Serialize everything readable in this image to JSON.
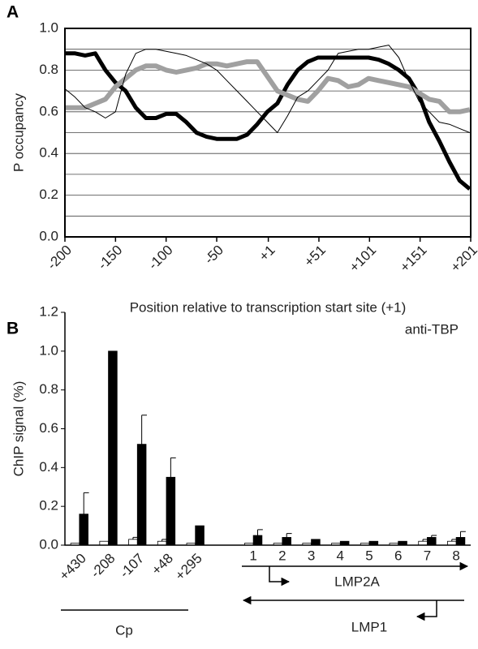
{
  "chart_data": [
    {
      "type": "line",
      "panel": "A",
      "y_label": "P occupancy",
      "x_label": "Position relative to transcription start site (+1)",
      "x": [
        -200,
        -190,
        -180,
        -170,
        -160,
        -150,
        -140,
        -130,
        -120,
        -110,
        -100,
        -90,
        -80,
        -70,
        -60,
        -50,
        -40,
        -30,
        -20,
        -10,
        0,
        10,
        20,
        30,
        40,
        50,
        60,
        70,
        80,
        90,
        100,
        110,
        120,
        130,
        140,
        150,
        160,
        170,
        180,
        190,
        200
      ],
      "series": [
        {
          "color": "#000000",
          "width": 5,
          "values": [
            0.88,
            0.88,
            0.87,
            0.88,
            0.8,
            0.74,
            0.7,
            0.62,
            0.57,
            0.57,
            0.59,
            0.59,
            0.55,
            0.5,
            0.48,
            0.47,
            0.47,
            0.47,
            0.49,
            0.54,
            0.6,
            0.64,
            0.73,
            0.8,
            0.84,
            0.86,
            0.86,
            0.86,
            0.86,
            0.86,
            0.86,
            0.85,
            0.83,
            0.8,
            0.76,
            0.68,
            0.55,
            0.46,
            0.36,
            0.27,
            0.23
          ]
        },
        {
          "color": "#a0a0a0",
          "width": 6,
          "values": [
            0.62,
            0.62,
            0.62,
            0.64,
            0.66,
            0.72,
            0.76,
            0.8,
            0.82,
            0.82,
            0.8,
            0.79,
            0.8,
            0.81,
            0.83,
            0.83,
            0.82,
            0.83,
            0.84,
            0.84,
            0.77,
            0.7,
            0.68,
            0.66,
            0.65,
            0.7,
            0.76,
            0.75,
            0.72,
            0.73,
            0.76,
            0.75,
            0.74,
            0.73,
            0.72,
            0.69,
            0.66,
            0.65,
            0.6,
            0.6,
            0.61
          ]
        },
        {
          "color": "#000000",
          "width": 1,
          "values": [
            0.71,
            0.67,
            0.62,
            0.6,
            0.57,
            0.6,
            0.78,
            0.88,
            0.9,
            0.9,
            0.89,
            0.88,
            0.87,
            0.85,
            0.83,
            0.8,
            0.75,
            0.7,
            0.65,
            0.6,
            0.55,
            0.5,
            0.58,
            0.67,
            0.7,
            0.75,
            0.8,
            0.88,
            0.89,
            0.9,
            0.9,
            0.91,
            0.92,
            0.86,
            0.75,
            0.65,
            0.6,
            0.55,
            0.54,
            0.52,
            0.5
          ]
        }
      ],
      "xlim": [
        -200,
        201
      ],
      "xticks": [
        -200,
        -150,
        -100,
        -50,
        {
          "value": 1,
          "label": "+1"
        },
        {
          "value": 51,
          "label": "+51"
        },
        {
          "value": 101,
          "label": "+101"
        },
        {
          "value": 151,
          "label": "+151"
        },
        {
          "value": 201,
          "label": "+201"
        }
      ],
      "ylim": [
        0,
        1
      ],
      "yticks": [
        {
          "value": 0,
          "label": "0.0"
        },
        {
          "value": 0.2,
          "label": "0.2"
        },
        {
          "value": 0.4,
          "label": "0.4"
        },
        {
          "value": 0.6,
          "label": "0.6"
        },
        {
          "value": 0.8,
          "label": "0.8"
        },
        {
          "value": 1,
          "label": "1.0"
        }
      ],
      "minor_yticks": [
        0.1,
        0.3,
        0.5,
        0.7,
        0.9
      ],
      "grid": true
    },
    {
      "type": "bar",
      "panel": "B",
      "y_label": "ChIP signal (%)",
      "annotations": [
        "anti-TBP",
        "Cp",
        "LMP2A",
        "LMP1"
      ],
      "categories": [
        "+430",
        "-208",
        "-107",
        "+48",
        "+295",
        null,
        "1",
        "2",
        "3",
        "4",
        "5",
        "6",
        "7",
        "8"
      ],
      "series": [
        {
          "color": "#ffffff",
          "values": [
            0.01,
            0.02,
            0.03,
            0.02,
            0.01,
            null,
            0.01,
            0.01,
            0.01,
            0.01,
            0.01,
            0.01,
            0.02,
            0.02
          ],
          "errors": [
            null,
            null,
            0.01,
            0.01,
            null,
            null,
            null,
            null,
            null,
            null,
            null,
            null,
            0.01,
            0.01
          ]
        },
        {
          "color": "#000000",
          "values": [
            0.16,
            1.0,
            0.52,
            0.35,
            0.1,
            null,
            0.05,
            0.04,
            0.03,
            0.02,
            0.02,
            0.02,
            0.04,
            0.04
          ],
          "errors": [
            0.11,
            null,
            0.15,
            0.1,
            null,
            null,
            0.03,
            0.02,
            null,
            null,
            null,
            null,
            0.01,
            0.03
          ]
        }
      ],
      "ylim": [
        0,
        1.2
      ],
      "yticks": [
        {
          "value": 0,
          "label": "0.0"
        },
        {
          "value": 0.2,
          "label": "0.2"
        },
        {
          "value": 0.4,
          "label": "0.4"
        },
        {
          "value": 0.6,
          "label": "0.6"
        },
        {
          "value": 0.8,
          "label": "0.8"
        },
        {
          "value": 1,
          "label": "1.0"
        },
        {
          "value": 1.2,
          "label": "1.2"
        }
      ]
    }
  ]
}
